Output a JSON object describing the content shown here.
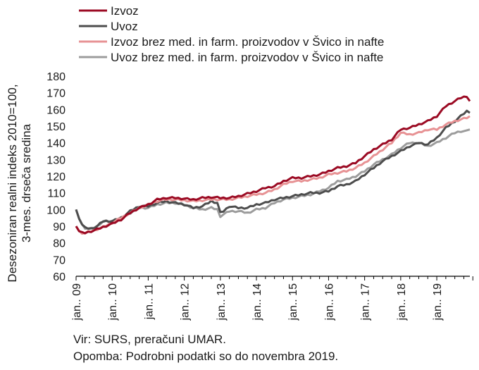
{
  "chart_data": {
    "type": "line",
    "ylabel_lines": [
      "Desezoniran realni indeks 2010=100,",
      "3-mes. drseča sredina"
    ],
    "ylim": [
      60,
      180
    ],
    "yticks": [
      60,
      70,
      80,
      90,
      100,
      110,
      120,
      130,
      140,
      150,
      160,
      170,
      180
    ],
    "xlim": [
      0,
      131
    ],
    "xticks": [
      {
        "pos": 0,
        "label": "jan.. 09"
      },
      {
        "pos": 12,
        "label": "jan.. 10"
      },
      {
        "pos": 24,
        "label": "jan.. 11"
      },
      {
        "pos": 36,
        "label": "jan.. 12"
      },
      {
        "pos": 48,
        "label": "jan.. 13"
      },
      {
        "pos": 60,
        "label": "jan.. 14"
      },
      {
        "pos": 72,
        "label": "jan.. 15"
      },
      {
        "pos": 84,
        "label": "jan.. 16"
      },
      {
        "pos": 96,
        "label": "jan.. 17"
      },
      {
        "pos": 108,
        "label": "jan.. 18"
      },
      {
        "pos": 120,
        "label": "jan.. 19"
      }
    ],
    "legend_position": "top",
    "grid": false,
    "series": [
      {
        "name": "Izvoz",
        "color": "#9b0a23",
        "width": 3,
        "keypoints": [
          [
            0,
            90
          ],
          [
            1,
            87
          ],
          [
            2,
            86
          ],
          [
            3,
            86
          ],
          [
            6,
            87.5
          ],
          [
            9,
            89.5
          ],
          [
            12,
            91.5
          ],
          [
            15,
            94
          ],
          [
            18,
            98
          ],
          [
            21,
            101
          ],
          [
            24,
            103
          ],
          [
            27,
            106
          ],
          [
            30,
            107
          ],
          [
            33,
            107
          ],
          [
            36,
            106.5
          ],
          [
            39,
            106
          ],
          [
            42,
            107
          ],
          [
            45,
            107.5
          ],
          [
            48,
            107
          ],
          [
            51,
            107
          ],
          [
            54,
            108
          ],
          [
            57,
            109.5
          ],
          [
            60,
            111
          ],
          [
            63,
            113
          ],
          [
            66,
            114
          ],
          [
            69,
            117
          ],
          [
            72,
            119
          ],
          [
            75,
            119
          ],
          [
            78,
            120
          ],
          [
            81,
            121
          ],
          [
            84,
            123
          ],
          [
            87,
            125
          ],
          [
            90,
            126
          ],
          [
            93,
            128
          ],
          [
            96,
            132
          ],
          [
            99,
            136
          ],
          [
            102,
            139
          ],
          [
            105,
            142
          ],
          [
            108,
            148
          ],
          [
            111,
            149
          ],
          [
            114,
            151
          ],
          [
            117,
            153
          ],
          [
            120,
            156
          ],
          [
            123,
            162
          ],
          [
            126,
            165
          ],
          [
            128,
            167
          ],
          [
            130,
            168
          ],
          [
            131,
            165
          ]
        ]
      },
      {
        "name": "Uvoz",
        "color": "#4d4d4d",
        "width": 3,
        "keypoints": [
          [
            0,
            100
          ],
          [
            1,
            95
          ],
          [
            2,
            91
          ],
          [
            3,
            89
          ],
          [
            5,
            88.5
          ],
          [
            7,
            90
          ],
          [
            9,
            93
          ],
          [
            12,
            93
          ],
          [
            15,
            95
          ],
          [
            18,
            99
          ],
          [
            21,
            102
          ],
          [
            24,
            102
          ],
          [
            27,
            104
          ],
          [
            30,
            105
          ],
          [
            33,
            104
          ],
          [
            36,
            103
          ],
          [
            39,
            101
          ],
          [
            42,
            102
          ],
          [
            45,
            105
          ],
          [
            47,
            104
          ],
          [
            48,
            98
          ],
          [
            49,
            99
          ],
          [
            51,
            102
          ],
          [
            54,
            101
          ],
          [
            57,
            101
          ],
          [
            60,
            103
          ],
          [
            63,
            104
          ],
          [
            66,
            106
          ],
          [
            69,
            107
          ],
          [
            72,
            108
          ],
          [
            75,
            109
          ],
          [
            78,
            110
          ],
          [
            81,
            110
          ],
          [
            84,
            111
          ],
          [
            87,
            114
          ],
          [
            90,
            115
          ],
          [
            93,
            117
          ],
          [
            96,
            121
          ],
          [
            99,
            125
          ],
          [
            102,
            129
          ],
          [
            105,
            132
          ],
          [
            108,
            135
          ],
          [
            111,
            138
          ],
          [
            114,
            140
          ],
          [
            117,
            139
          ],
          [
            120,
            143
          ],
          [
            123,
            149
          ],
          [
            126,
            153
          ],
          [
            128,
            156
          ],
          [
            130,
            159
          ],
          [
            131,
            158
          ]
        ]
      },
      {
        "name": "Izvoz brez med. in farm. proizvodov v Švico in nafte",
        "color": "#e79294",
        "width": 3,
        "keypoints": [
          [
            0,
            90
          ],
          [
            1,
            87
          ],
          [
            2,
            86
          ],
          [
            3,
            86
          ],
          [
            6,
            87.5
          ],
          [
            9,
            89.5
          ],
          [
            12,
            92
          ],
          [
            15,
            95
          ],
          [
            18,
            98
          ],
          [
            21,
            101
          ],
          [
            24,
            103
          ],
          [
            27,
            105
          ],
          [
            30,
            106
          ],
          [
            33,
            106
          ],
          [
            36,
            105.5
          ],
          [
            39,
            105
          ],
          [
            42,
            105.5
          ],
          [
            45,
            106
          ],
          [
            48,
            106
          ],
          [
            51,
            106
          ],
          [
            54,
            107
          ],
          [
            57,
            108
          ],
          [
            60,
            109
          ],
          [
            63,
            110
          ],
          [
            66,
            112
          ],
          [
            69,
            115
          ],
          [
            72,
            117
          ],
          [
            75,
            117
          ],
          [
            78,
            118
          ],
          [
            81,
            119
          ],
          [
            84,
            121
          ],
          [
            87,
            122
          ],
          [
            90,
            123
          ],
          [
            93,
            125
          ],
          [
            96,
            128
          ],
          [
            99,
            132
          ],
          [
            102,
            136
          ],
          [
            105,
            140
          ],
          [
            108,
            146
          ],
          [
            111,
            145
          ],
          [
            114,
            146
          ],
          [
            117,
            148
          ],
          [
            120,
            148
          ],
          [
            123,
            151
          ],
          [
            126,
            153
          ],
          [
            128,
            154
          ],
          [
            130,
            155
          ],
          [
            131,
            156
          ]
        ]
      },
      {
        "name": "Uvoz brez med. in farm. proizvodov v Švico in nafte",
        "color": "#9c9c9c",
        "width": 3,
        "keypoints": [
          [
            0,
            100
          ],
          [
            1,
            95
          ],
          [
            2,
            91
          ],
          [
            3,
            89
          ],
          [
            5,
            88.5
          ],
          [
            7,
            90
          ],
          [
            9,
            93
          ],
          [
            12,
            93
          ],
          [
            15,
            95
          ],
          [
            18,
            98
          ],
          [
            21,
            101
          ],
          [
            24,
            101
          ],
          [
            27,
            103
          ],
          [
            30,
            104
          ],
          [
            33,
            104
          ],
          [
            36,
            103
          ],
          [
            39,
            101
          ],
          [
            42,
            100
          ],
          [
            45,
            101
          ],
          [
            47,
            100
          ],
          [
            48,
            96
          ],
          [
            49,
            97
          ],
          [
            51,
            99
          ],
          [
            54,
            99
          ],
          [
            57,
            98
          ],
          [
            60,
            100
          ],
          [
            63,
            101
          ],
          [
            66,
            104
          ],
          [
            69,
            106
          ],
          [
            72,
            107
          ],
          [
            75,
            108
          ],
          [
            78,
            109
          ],
          [
            81,
            111
          ],
          [
            84,
            113
          ],
          [
            87,
            117
          ],
          [
            90,
            118
          ],
          [
            93,
            120
          ],
          [
            96,
            123
          ],
          [
            99,
            127
          ],
          [
            102,
            130
          ],
          [
            105,
            133
          ],
          [
            108,
            137
          ],
          [
            111,
            140
          ],
          [
            114,
            140
          ],
          [
            117,
            138
          ],
          [
            120,
            140
          ],
          [
            123,
            143
          ],
          [
            126,
            146
          ],
          [
            128,
            147
          ],
          [
            130,
            147
          ],
          [
            131,
            148
          ]
        ]
      }
    ]
  },
  "notes": {
    "source": "Vir: SURS, preračuni UMAR.",
    "remark": "Opomba: Podrobni podatki so do novembra 2019."
  }
}
